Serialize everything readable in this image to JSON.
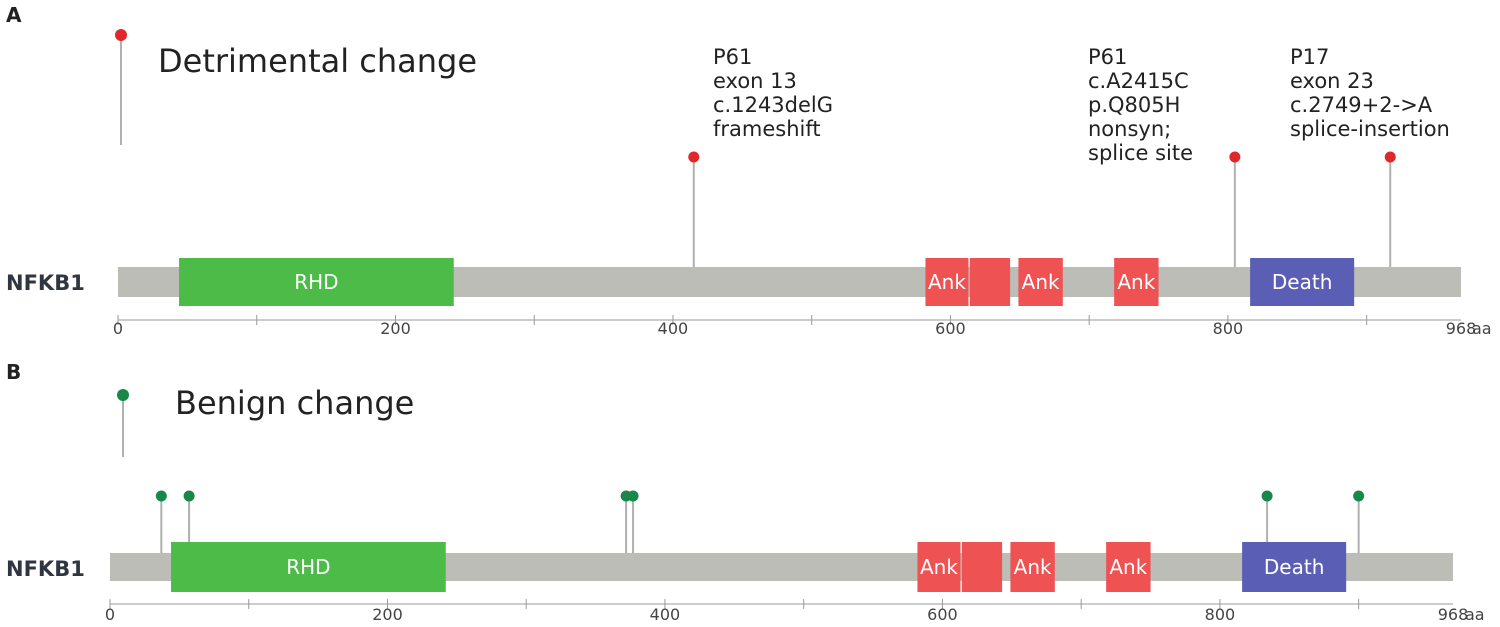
{
  "panels": [
    {
      "letter": "A",
      "legend": {
        "text": "Detrimental change",
        "color": "#e0282c"
      },
      "gene": "NFKB1",
      "protein_length": 968,
      "unit": "aa",
      "axis_ticks": [
        0,
        200,
        400,
        600,
        800
      ],
      "axis_end_label": "968",
      "domains": [
        {
          "name": "RHD",
          "label": "RHD",
          "start": 44,
          "end": 242,
          "color": "#4cbb47"
        },
        {
          "name": "Ank",
          "label": "Ank",
          "start": 582,
          "end": 613,
          "color": "#ee5253"
        },
        {
          "name": "Ank",
          "label": "",
          "start": 614,
          "end": 643,
          "color": "#ee5253"
        },
        {
          "name": "Ank",
          "label": "Ank",
          "start": 649,
          "end": 681,
          "color": "#ee5253"
        },
        {
          "name": "Ank",
          "label": "Ank",
          "start": 718,
          "end": 750,
          "color": "#ee5253"
        },
        {
          "name": "Death",
          "label": "Death",
          "start": 816,
          "end": 891,
          "color": "#5b5eb5"
        }
      ],
      "variants": [
        {
          "pos": 415,
          "lines": [
            "P61",
            "exon 13",
            "c.1243delG",
            "frameshift"
          ]
        },
        {
          "pos": 805,
          "lines": [
            "P61",
            "c.A2415C",
            "p.Q805H",
            "nonsyn;",
            "splice site"
          ]
        },
        {
          "pos": 917,
          "lines": [
            "P17",
            "exon 23",
            "c.2749+2->A",
            "splice-insertion"
          ]
        }
      ]
    },
    {
      "letter": "B",
      "legend": {
        "text": "Benign change",
        "color": "#17874a"
      },
      "gene": "NFKB1",
      "protein_length": 968,
      "unit": "aa",
      "axis_ticks": [
        0,
        200,
        400,
        600,
        800
      ],
      "axis_end_label": "968",
      "domains": [
        {
          "name": "RHD",
          "label": "RHD",
          "start": 44,
          "end": 242,
          "color": "#4cbb47"
        },
        {
          "name": "Ank",
          "label": "Ank",
          "start": 582,
          "end": 613,
          "color": "#ee5253"
        },
        {
          "name": "Ank",
          "label": "",
          "start": 614,
          "end": 643,
          "color": "#ee5253"
        },
        {
          "name": "Ank",
          "label": "Ank",
          "start": 649,
          "end": 681,
          "color": "#ee5253"
        },
        {
          "name": "Ank",
          "label": "Ank",
          "start": 718,
          "end": 750,
          "color": "#ee5253"
        },
        {
          "name": "Death",
          "label": "Death",
          "start": 816,
          "end": 891,
          "color": "#5b5eb5"
        }
      ],
      "variants": [
        {
          "pos": 37,
          "lines": []
        },
        {
          "pos": 57,
          "lines": []
        },
        {
          "pos": 372,
          "lines": []
        },
        {
          "pos": 377,
          "lines": []
        },
        {
          "pos": 834,
          "lines": []
        },
        {
          "pos": 900,
          "lines": []
        }
      ]
    }
  ]
}
